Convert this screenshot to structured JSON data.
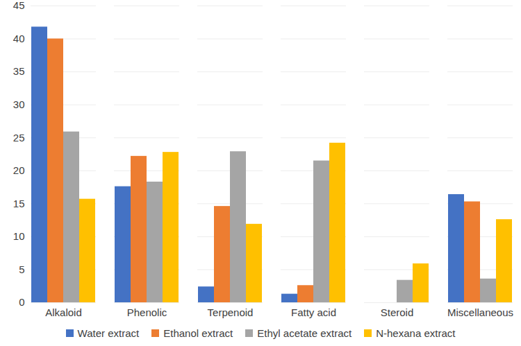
{
  "chart_data": {
    "type": "bar",
    "categories": [
      "Alkaloid",
      "Phenolic",
      "Terpenoid",
      "Fatty acid",
      "Steroid",
      "Miscellaneous"
    ],
    "series": [
      {
        "name": "Water extract",
        "color": "#4472c4",
        "values": [
          41.8,
          17.6,
          2.4,
          1.3,
          0,
          16.4
        ]
      },
      {
        "name": "Ethanol extract",
        "color": "#ed7d31",
        "values": [
          40.0,
          22.2,
          14.6,
          2.6,
          0,
          15.3
        ]
      },
      {
        "name": "Ethyl acetate extract",
        "color": "#a5a5a5",
        "values": [
          25.9,
          18.3,
          22.9,
          21.5,
          3.4,
          3.6
        ]
      },
      {
        "name": "N-hexana extract",
        "color": "#ffc000",
        "values": [
          15.7,
          22.8,
          11.9,
          24.2,
          5.9,
          12.6
        ]
      }
    ],
    "ylim": [
      0,
      45
    ],
    "yticks": [
      0,
      5,
      10,
      15,
      20,
      25,
      30,
      35,
      40,
      45
    ],
    "grid": true,
    "legend": "bottom"
  }
}
